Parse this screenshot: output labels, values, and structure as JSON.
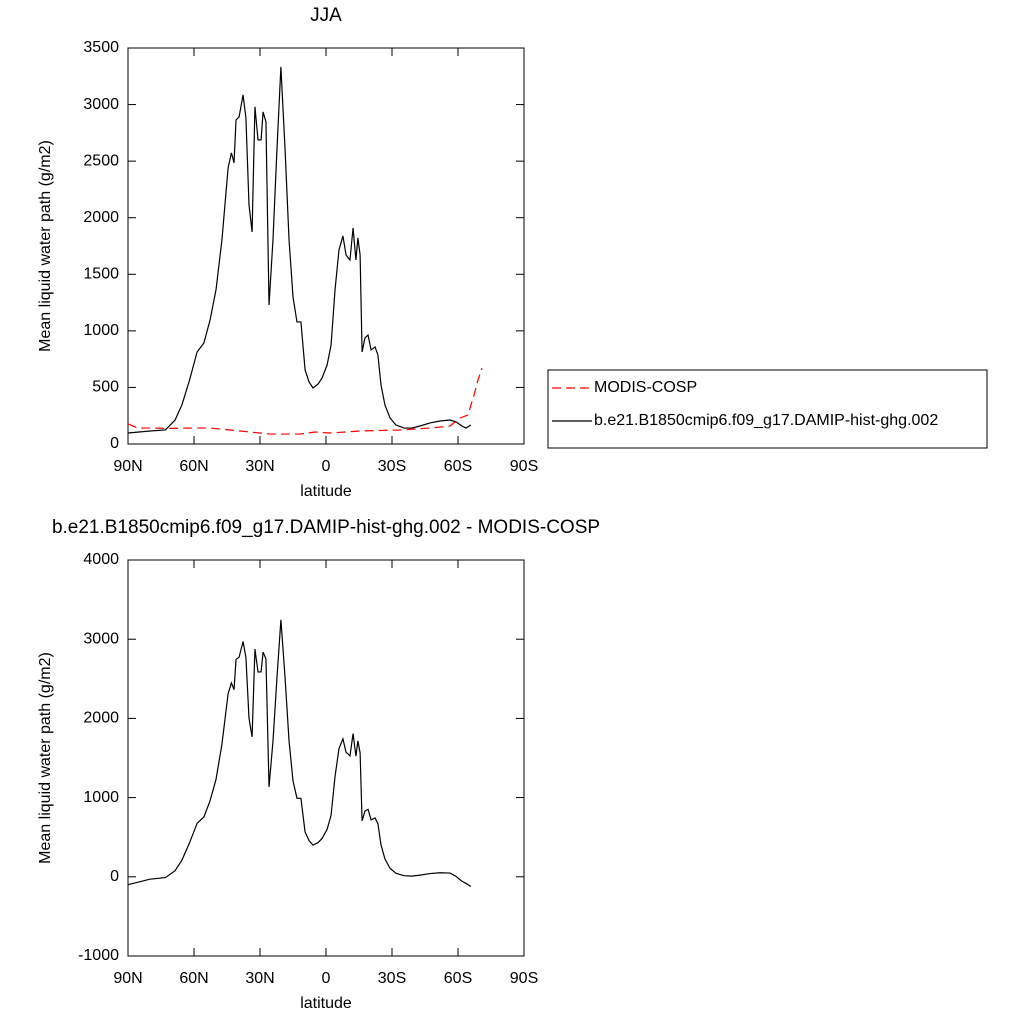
{
  "chart_data": [
    {
      "type": "line",
      "title": "JJA",
      "xlabel": "latitude",
      "ylabel": "Mean liquid water path (g/m2)",
      "xlim": [
        90,
        -90
      ],
      "xticks": [
        {
          "value": 90,
          "label": "90N"
        },
        {
          "value": 60,
          "label": "60N"
        },
        {
          "value": 30,
          "label": "30N"
        },
        0,
        {
          "value": -30,
          "label": "30S"
        },
        {
          "value": -60,
          "label": "60S"
        },
        {
          "value": -90,
          "label": "90S"
        }
      ],
      "ylim": [
        0,
        3500
      ],
      "yticks": [
        0,
        500,
        1000,
        1500,
        2000,
        2500,
        3000,
        3500
      ],
      "legend": "right",
      "series": [
        {
          "name": "MODIS-COSP",
          "color": "#ff0000",
          "line_style": "dashed",
          "x": [
            90,
            85.5,
            80,
            70.9,
            62,
            52.7,
            39.1,
            25.5,
            11.8,
            5,
            -1.8,
            -15.5,
            -33.6,
            -47.3,
            -56.4,
            -60.9,
            -64.5,
            -67.3,
            -69.1,
            -70.9
          ],
          "values": [
            177,
            141,
            141,
            138,
            141,
            141,
            115,
            88,
            88,
            106,
            97,
            115,
            124,
            141,
            159,
            230,
            256,
            433,
            566,
            672
          ]
        },
        {
          "name": "b.e21.B1850cmip6.f09_g17.DAMIP-hist-ghg.002",
          "color": "#000000",
          "line_style": "solid",
          "x": [
            90,
            80,
            73,
            68.6,
            65.5,
            62,
            58.6,
            55.5,
            52.7,
            50,
            47.3,
            44.5,
            43,
            41.8,
            40.9,
            39.5,
            37.7,
            36.4,
            35,
            33.6,
            32.3,
            30.9,
            29.5,
            28.6,
            27.3,
            25.9,
            24.1,
            22.3,
            20.5,
            18.6,
            16.8,
            15,
            13.2,
            11.4,
            9.5,
            7.7,
            5.9,
            3.6,
            1.8,
            -0.5,
            -2.3,
            -4.1,
            -5.9,
            -7.7,
            -9.1,
            -10.9,
            -12.3,
            -13.6,
            -14.5,
            -15.5,
            -16.4,
            -17.7,
            -19.1,
            -20.5,
            -22.3,
            -23.6,
            -25,
            -26.8,
            -29.1,
            -31.8,
            -35.5,
            -39.1,
            -42.7,
            -47.3,
            -51.8,
            -56.4,
            -59.1,
            -61.8,
            -63.6,
            -65.9
          ],
          "values": [
            97,
            115,
            124,
            212,
            345,
            566,
            813,
            893,
            1096,
            1362,
            1804,
            2440,
            2573,
            2485,
            2865,
            2891,
            3086,
            2882,
            2113,
            1874,
            2980,
            2688,
            2688,
            2935,
            2847,
            1229,
            1804,
            2600,
            3333,
            2600,
            1804,
            1300,
            1079,
            1079,
            654,
            548,
            495,
            530,
            584,
            698,
            875,
            1362,
            1715,
            1839,
            1671,
            1627,
            1910,
            1627,
            1821,
            1671,
            813,
            937,
            963,
            831,
            858,
            787,
            522,
            345,
            230,
            168,
            141,
            141,
            159,
            186,
            203,
            212,
            195,
            159,
            141,
            168
          ]
        }
      ]
    },
    {
      "type": "line",
      "title": "b.e21.B1850cmip6.f09_g17.DAMIP-hist-ghg.002 - MODIS-COSP",
      "xlabel": "latitude",
      "ylabel": "Mean liquid water path (g/m2)",
      "xlim": [
        90,
        -90
      ],
      "xticks": [
        {
          "value": 90,
          "label": "90N"
        },
        {
          "value": 60,
          "label": "60N"
        },
        {
          "value": 30,
          "label": "30N"
        },
        0,
        {
          "value": -30,
          "label": "30S"
        },
        {
          "value": -60,
          "label": "60S"
        },
        {
          "value": -90,
          "label": "90S"
        }
      ],
      "ylim": [
        -1000,
        4000
      ],
      "yticks": [
        -1000,
        0,
        1000,
        2000,
        3000,
        4000
      ],
      "series": [
        {
          "color": "#000000",
          "line_style": "solid",
          "x": [
            90,
            80,
            73,
            68.6,
            65.5,
            62,
            58.6,
            55.5,
            52.7,
            50,
            47.3,
            44.5,
            43,
            41.8,
            40.9,
            39.5,
            37.7,
            36.4,
            35,
            33.6,
            32.3,
            30.9,
            29.5,
            28.6,
            27.3,
            25.9,
            24.1,
            22.3,
            20.5,
            18.6,
            16.8,
            15,
            13.2,
            11.4,
            9.5,
            7.7,
            5.9,
            3.6,
            1.8,
            -0.5,
            -2.3,
            -4.1,
            -5.9,
            -7.7,
            -9.1,
            -10.9,
            -12.3,
            -13.6,
            -14.5,
            -15.5,
            -16.4,
            -17.7,
            -19.1,
            -20.5,
            -22.3,
            -23.6,
            -25,
            -26.8,
            -29.1,
            -31.8,
            -35.5,
            -39.1,
            -42.7,
            -47.3,
            -51.8,
            -56.4,
            -59.1,
            -61.8,
            -63.6,
            -65.9
          ],
          "values": [
            -100,
            -30,
            -10,
            77,
            210,
            431,
            675,
            755,
            961,
            1229,
            1674,
            2312,
            2448,
            2363,
            2745,
            2773,
            2971,
            2770,
            2003,
            1766,
            2875,
            2586,
            2588,
            2837,
            2751,
            1135,
            1712,
            2510,
            3245,
            2512,
            1716,
            1212,
            991,
            991,
            564,
            456,
            400,
            432,
            484,
            598,
            777,
            1265,
            1618,
            1742,
            1573,
            1527,
            1808,
            1523,
            1716,
            1565,
            706,
            829,
            853,
            719,
            744,
            671,
            404,
            225,
            108,
            44,
            14,
            9,
            21,
            41,
            51,
            47,
            5,
            -56,
            -84,
            -122
          ]
        }
      ]
    }
  ]
}
